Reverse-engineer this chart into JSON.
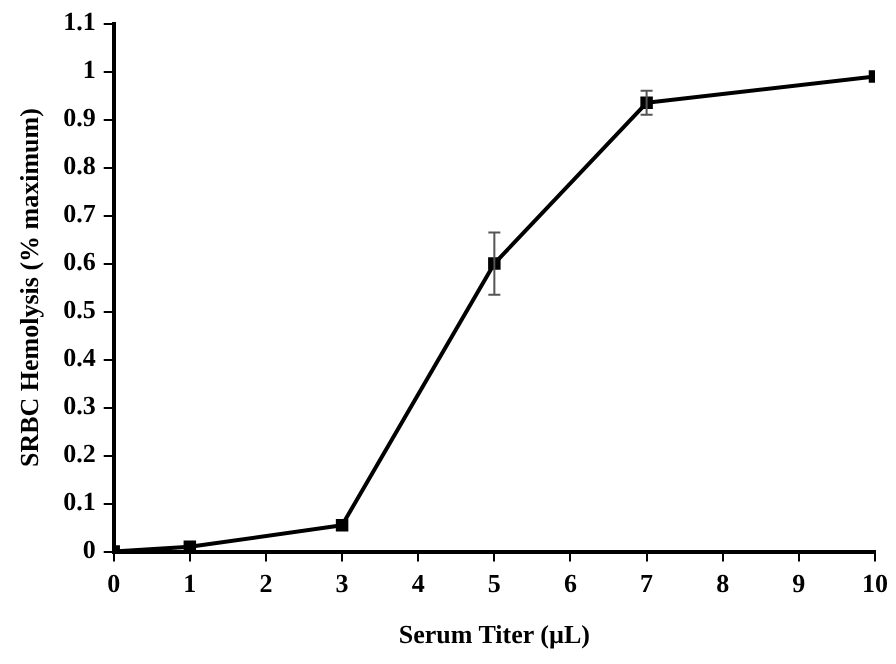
{
  "chart_data": {
    "type": "line",
    "xlabel": "Serum Titer (µL)",
    "ylabel": "SRBC Hemolysis (% maximum)",
    "x": [
      0,
      1,
      3,
      5,
      7,
      10
    ],
    "series": [
      {
        "color": "#000000",
        "values": [
          0,
          0.01,
          0.055,
          0.6,
          0.935,
          0.99
        ],
        "errors": [
          null,
          null,
          null,
          0.065,
          0.025,
          null
        ]
      }
    ],
    "xlim": [
      0,
      10
    ],
    "xticks": [
      0,
      1,
      2,
      3,
      4,
      5,
      6,
      7,
      8,
      9,
      10
    ],
    "ylim": [
      0,
      1.1
    ],
    "yticks": [
      0,
      0.1,
      0.2,
      0.3,
      0.4,
      0.5,
      0.6,
      0.7,
      0.8,
      0.9,
      1,
      1.1
    ],
    "grid": false,
    "legend": false,
    "marker": "square",
    "line_style": "solid"
  }
}
